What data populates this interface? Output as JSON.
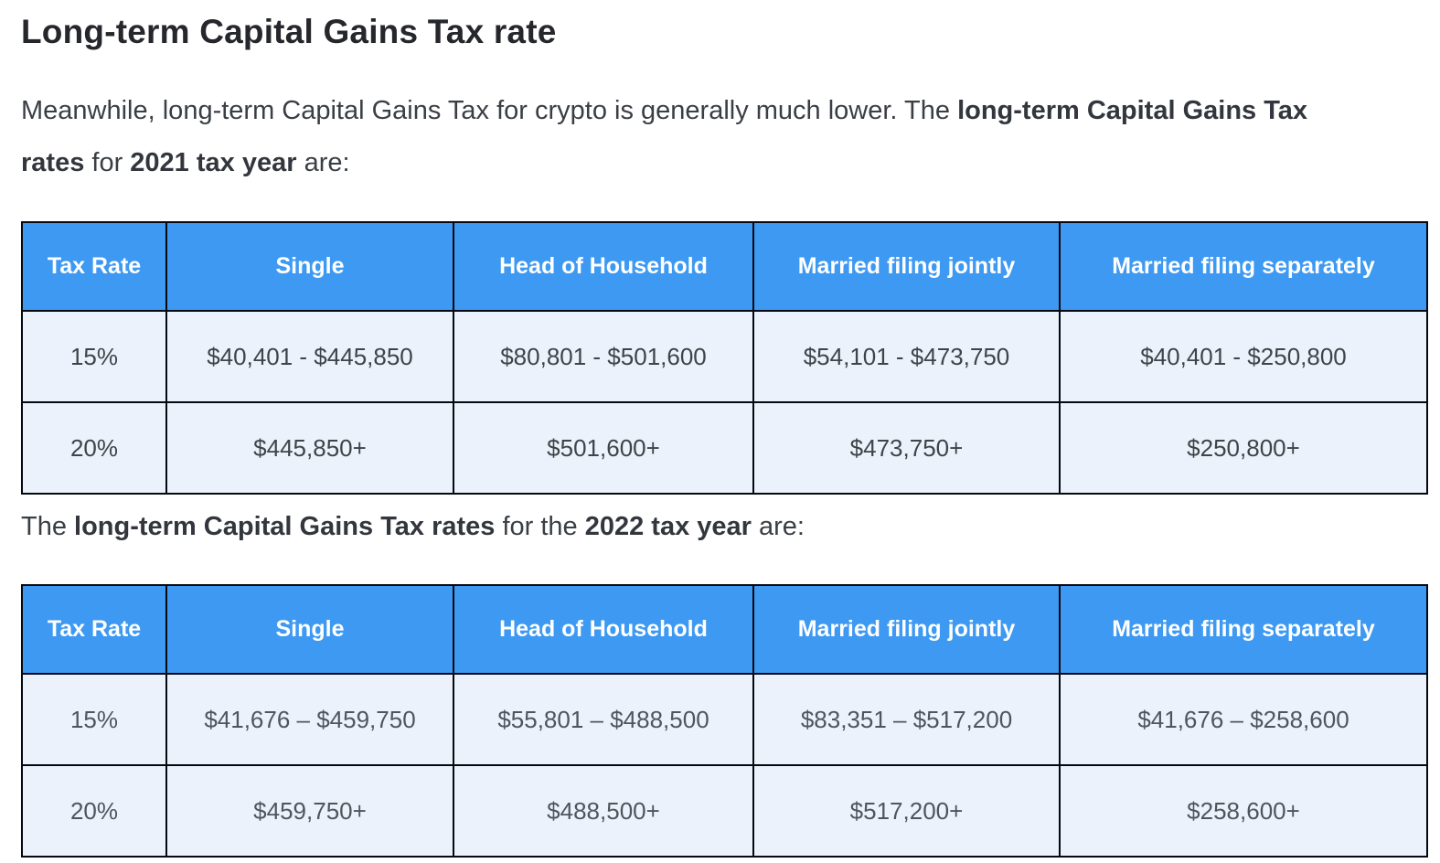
{
  "heading": "Long-term Capital Gains Tax rate",
  "intro": {
    "normal1": "Meanwhile, long-term Capital Gains Tax for crypto is generally much lower. The ",
    "bold1": "long-term Capital Gains Tax rates",
    "normal2": " for ",
    "bold2": "2021 tax year",
    "normal3": " are:"
  },
  "between": {
    "normal1": "The ",
    "bold1": "long-term Capital Gains Tax rates",
    "normal2": " for the ",
    "bold2": "2022 tax year",
    "normal3": " are:"
  },
  "colors": {
    "header_bg": "#3d99f2",
    "header_text": "#ffffff",
    "row_bg": "#ebf2fb",
    "border": "#05080f"
  },
  "tables": [
    {
      "year": "2021",
      "headers": [
        "Tax Rate",
        "Single",
        "Head of Household",
        "Married filing jointly",
        "Married filing separately"
      ],
      "rows": [
        [
          "15%",
          "$40,401 - $445,850",
          "$80,801 - $501,600",
          "$54,101 - $473,750",
          "$40,401 - $250,800"
        ],
        [
          "20%",
          "$445,850+",
          "$501,600+",
          "$473,750+",
          "$250,800+"
        ]
      ]
    },
    {
      "year": "2022",
      "headers": [
        "Tax Rate",
        "Single",
        "Head of Household",
        "Married filing jointly",
        "Married filing separately"
      ],
      "rows": [
        [
          "15%",
          "$41,676 – $459,750",
          "$55,801 – $488,500",
          "$83,351 – $517,200",
          "$41,676 – $258,600"
        ],
        [
          "20%",
          "$459,750+",
          "$488,500+",
          "$517,200+",
          "$258,600+"
        ]
      ]
    }
  ]
}
